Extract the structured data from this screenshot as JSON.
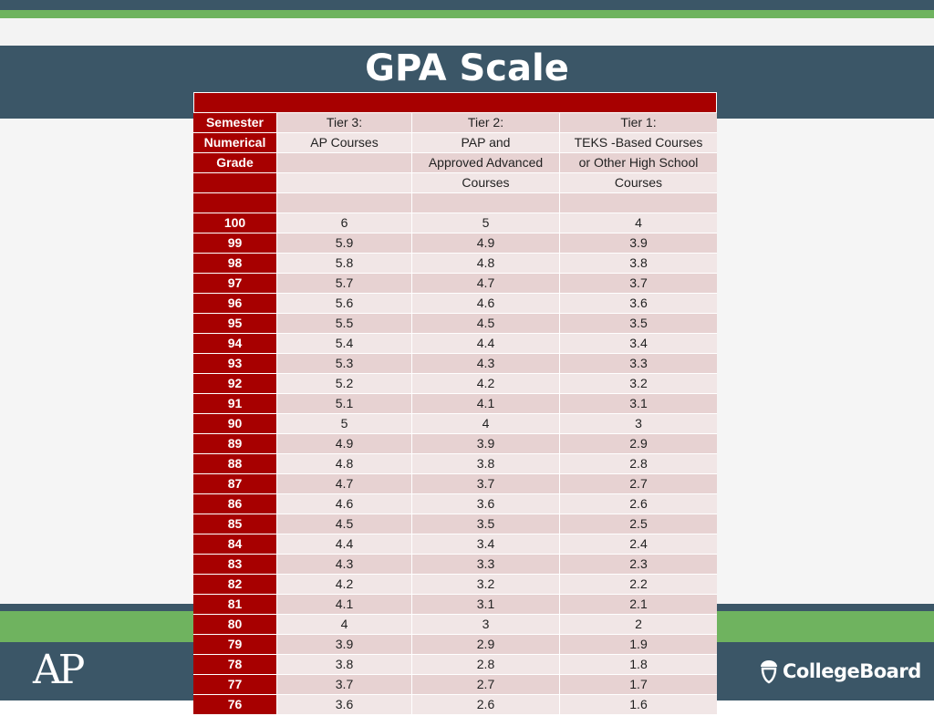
{
  "slide": {
    "title": "GPA Scale",
    "ap_logo": "AP",
    "collegeboard_logo": "CollegeBoard",
    "colors": {
      "navy": "#3b5667",
      "green": "#6fb35f",
      "header_red": "#a70000"
    }
  },
  "table": {
    "header_rows": [
      [
        "Semester",
        "Tier 3:",
        "Tier 2:",
        "Tier 1:"
      ],
      [
        "Numerical",
        "AP Courses",
        "PAP and",
        "TEKS -Based Courses"
      ],
      [
        "Grade",
        "",
        "Approved Advanced",
        "or Other High School"
      ],
      [
        "",
        "",
        "Courses",
        "Courses"
      ],
      [
        "",
        "",
        "",
        ""
      ]
    ],
    "rows": [
      [
        "100",
        "6",
        "5",
        "4"
      ],
      [
        "99",
        "5.9",
        "4.9",
        "3.9"
      ],
      [
        "98",
        "5.8",
        "4.8",
        "3.8"
      ],
      [
        "97",
        "5.7",
        "4.7",
        "3.7"
      ],
      [
        "96",
        "5.6",
        "4.6",
        "3.6"
      ],
      [
        "95",
        "5.5",
        "4.5",
        "3.5"
      ],
      [
        "94",
        "5.4",
        "4.4",
        "3.4"
      ],
      [
        "93",
        "5.3",
        "4.3",
        "3.3"
      ],
      [
        "92",
        "5.2",
        "4.2",
        "3.2"
      ],
      [
        "91",
        "5.1",
        "4.1",
        "3.1"
      ],
      [
        "90",
        "5",
        "4",
        "3"
      ],
      [
        "89",
        "4.9",
        "3.9",
        "2.9"
      ],
      [
        "88",
        "4.8",
        "3.8",
        "2.8"
      ],
      [
        "87",
        "4.7",
        "3.7",
        "2.7"
      ],
      [
        "86",
        "4.6",
        "3.6",
        "2.6"
      ],
      [
        "85",
        "4.5",
        "3.5",
        "2.5"
      ],
      [
        "84",
        "4.4",
        "3.4",
        "2.4"
      ],
      [
        "83",
        "4.3",
        "3.3",
        "2.3"
      ],
      [
        "82",
        "4.2",
        "3.2",
        "2.2"
      ],
      [
        "81",
        "4.1",
        "3.1",
        "2.1"
      ],
      [
        "80",
        "4",
        "3",
        "2"
      ],
      [
        "79",
        "3.9",
        "2.9",
        "1.9"
      ],
      [
        "78",
        "3.8",
        "2.8",
        "1.8"
      ],
      [
        "77",
        "3.7",
        "2.7",
        "1.7"
      ],
      [
        "76",
        "3.6",
        "2.6",
        "1.6"
      ]
    ]
  }
}
